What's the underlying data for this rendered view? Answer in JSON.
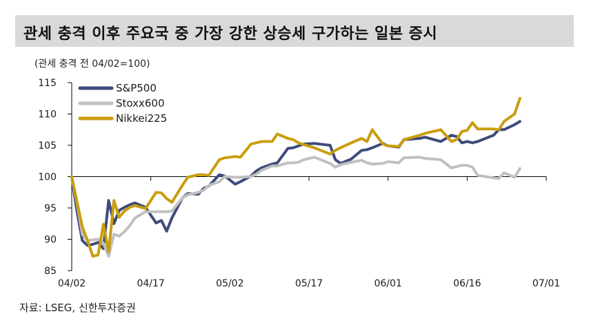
{
  "title": "관세 충격 이후 주요국 중 가장 강한 상승세 구가하는 일본 증시",
  "subtitle": "(관세 충격 전 04/02=100)",
  "source": "자료: LSEG, 신한투자증권",
  "colors": {
    "title_bg": "#d9d9d9",
    "axis": "#000000"
  },
  "chart_data": {
    "type": "line",
    "title": "관세 충격 이후 주요국 중 가장 강한 상승세 구가하는 일본 증시",
    "ylabel": "(관세 충격 전 04/02=100)",
    "xlabel": "",
    "ylim": [
      85,
      115
    ],
    "yticks": [
      85,
      90,
      95,
      100,
      105,
      110,
      115
    ],
    "xlim": [
      0,
      90
    ],
    "xticks": [
      {
        "x": 0,
        "label": "04/02"
      },
      {
        "x": 15,
        "label": "04/17"
      },
      {
        "x": 30,
        "label": "05/02"
      },
      {
        "x": 45,
        "label": "05/17"
      },
      {
        "x": 60,
        "label": "06/01"
      },
      {
        "x": 75,
        "label": "06/16"
      },
      {
        "x": 90,
        "label": "07/01"
      }
    ],
    "legend_position": "top-left",
    "grid": false,
    "series": [
      {
        "name": "S&P500",
        "color": "#3e4b7a",
        "x": [
          0,
          1,
          2,
          3,
          4,
          5,
          6,
          7,
          8,
          9,
          10,
          11,
          12,
          14,
          16,
          17,
          18,
          19,
          21,
          22,
          24,
          25,
          26,
          28,
          29,
          31,
          32,
          34,
          35,
          36,
          38,
          39,
          41,
          42,
          43,
          44,
          46,
          49,
          50,
          51,
          53,
          55,
          56,
          57,
          59,
          60,
          62,
          63,
          66,
          67,
          70,
          72,
          73,
          74,
          75,
          76,
          77,
          80,
          81,
          82,
          84,
          85
        ],
        "values": [
          100,
          94.5,
          89.8,
          89,
          89.2,
          89.5,
          88.5,
          96.2,
          92.5,
          94.6,
          95.1,
          95.5,
          95.8,
          95.1,
          92.6,
          93,
          91.3,
          93.4,
          96.6,
          97.3,
          97.2,
          98.1,
          98.5,
          100.3,
          100.1,
          98.8,
          99.2,
          100.1,
          100.9,
          101.4,
          102,
          102.2,
          104.5,
          104.6,
          104.9,
          105.2,
          105.3,
          105,
          102.7,
          102.1,
          102.8,
          104.2,
          104.3,
          104.6,
          105.3,
          104.9,
          104.7,
          105.9,
          106.1,
          106.3,
          105.6,
          106.6,
          106.4,
          105.4,
          105.6,
          105.4,
          105.6,
          106.6,
          107.5,
          107.5,
          108.3,
          108.8
        ]
      },
      {
        "name": "Stoxx600",
        "color": "#c0c0c0",
        "x": [
          0,
          1,
          2,
          3,
          4,
          5,
          6,
          7,
          8,
          9,
          10,
          11,
          12,
          14,
          16,
          17,
          18,
          19,
          21,
          22,
          24,
          25,
          26,
          28,
          29,
          31,
          32,
          34,
          35,
          36,
          38,
          39,
          41,
          42,
          43,
          44,
          46,
          49,
          50,
          51,
          53,
          55,
          56,
          57,
          59,
          60,
          62,
          63,
          66,
          67,
          70,
          72,
          73,
          74,
          75,
          76,
          77,
          80,
          81,
          82,
          84,
          85
        ],
        "values": [
          100,
          95.8,
          90.8,
          89.8,
          89.9,
          90,
          89.4,
          87.3,
          90.8,
          90.5,
          91.2,
          92.2,
          93.4,
          94.4,
          94.4,
          94.4,
          94.4,
          94.5,
          96.6,
          97.1,
          97.5,
          97.8,
          98.6,
          99.2,
          100,
          99.9,
          99.9,
          100,
          100.4,
          101,
          101.7,
          101.7,
          102.2,
          102.2,
          102.3,
          102.7,
          103.1,
          102.1,
          101.5,
          101.9,
          102.3,
          102.6,
          102.2,
          102,
          102.1,
          102.4,
          102.2,
          103,
          103.1,
          102.9,
          102.7,
          101.4,
          101.6,
          101.8,
          101.8,
          101.5,
          100.2,
          99.8,
          99.7,
          100.6,
          99.9,
          101.3
        ]
      },
      {
        "name": "Nikkei225",
        "color": "#c99d0d",
        "x": [
          0,
          1,
          2,
          3,
          4,
          5,
          6,
          7,
          8,
          9,
          10,
          11,
          12,
          14,
          16,
          17,
          18,
          19,
          21,
          22,
          24,
          25,
          26,
          28,
          29,
          31,
          32,
          34,
          35,
          36,
          38,
          39,
          41,
          42,
          43,
          44,
          46,
          49,
          50,
          51,
          53,
          55,
          56,
          57,
          59,
          60,
          62,
          63,
          66,
          67,
          70,
          72,
          73,
          74,
          75,
          76,
          77,
          80,
          81,
          82,
          84,
          85
        ],
        "values": [
          100,
          96,
          92,
          89.8,
          87.3,
          87.5,
          92.4,
          88,
          96.2,
          93.5,
          94.5,
          95.1,
          95.4,
          94.9,
          97.5,
          97.4,
          96.5,
          95.9,
          98.6,
          99.9,
          100.3,
          100.3,
          100.2,
          102.7,
          103,
          103.2,
          103.1,
          105.2,
          105.4,
          105.6,
          105.6,
          106.8,
          106.1,
          105.9,
          105.4,
          105.1,
          104.6,
          103.6,
          104.2,
          104.6,
          105.4,
          106.1,
          105.6,
          107.5,
          105.2,
          104.9,
          104.8,
          105.9,
          106.6,
          106.9,
          107.5,
          105.6,
          105.9,
          107.2,
          107.4,
          108.6,
          107.6,
          107.6,
          107.5,
          108.8,
          110,
          112.5
        ]
      }
    ]
  }
}
